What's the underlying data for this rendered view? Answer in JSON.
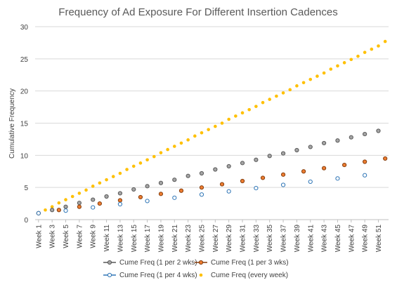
{
  "chart_data": {
    "type": "scatter",
    "title": "Frequency of Ad Exposure For Different Insertion Cadences",
    "xlabel": "",
    "ylabel": "Cumulative Frequency",
    "ylim": [
      0,
      30
    ],
    "yticks": [
      0,
      5,
      10,
      15,
      20,
      25,
      30
    ],
    "x_tick_labels": [
      "Week 1",
      "Week 3",
      "Week 5",
      "Week 7",
      "Week 9",
      "Week 11",
      "Week 13",
      "Week 15",
      "Week 17",
      "Week 19",
      "Week 21",
      "Week 23",
      "Week 25",
      "Week 27",
      "Week 29",
      "Week 31",
      "Week 33",
      "Week 35",
      "Week 37",
      "Week 39",
      "Week 41",
      "Week 43",
      "Week 45",
      "Week 47",
      "Week 49",
      "Week 51"
    ],
    "x_range": [
      1,
      52
    ],
    "grid": "horizontal",
    "legend_position": "bottom",
    "series": [
      {
        "name": "Cume Freq (1 per 2 wks)",
        "color": "#a5a5a5",
        "edge": "#595959",
        "marker": "circle",
        "x": [
          1,
          3,
          5,
          7,
          9,
          11,
          13,
          15,
          17,
          19,
          21,
          23,
          25,
          27,
          29,
          31,
          33,
          35,
          37,
          39,
          41,
          43,
          45,
          47,
          49,
          51
        ],
        "values": [
          1.0,
          1.5,
          2.0,
          2.6,
          3.1,
          3.6,
          4.1,
          4.7,
          5.2,
          5.7,
          6.2,
          6.8,
          7.2,
          7.8,
          8.3,
          8.8,
          9.3,
          9.9,
          10.3,
          10.8,
          11.3,
          11.9,
          12.3,
          12.8,
          13.3,
          13.8
        ]
      },
      {
        "name": "Cume Freq (1 per 3 wks)",
        "color": "#ed7d31",
        "edge": "#843c0c",
        "marker": "circle",
        "x": [
          1,
          4,
          7,
          10,
          13,
          16,
          19,
          22,
          25,
          28,
          31,
          34,
          37,
          40,
          43,
          46,
          49,
          52
        ],
        "values": [
          1.0,
          1.5,
          2.0,
          2.5,
          3.0,
          3.5,
          4.0,
          4.5,
          5.0,
          5.5,
          6.0,
          6.5,
          7.0,
          7.5,
          8.0,
          8.5,
          9.0,
          9.5
        ]
      },
      {
        "name": "Cume Freq (1 per 4 wks)",
        "color": "#ffffff",
        "edge": "#2e75b6",
        "marker": "circle",
        "x": [
          1,
          5,
          9,
          13,
          17,
          21,
          25,
          29,
          33,
          37,
          41,
          45,
          49
        ],
        "values": [
          1.0,
          1.4,
          1.9,
          2.4,
          2.9,
          3.4,
          3.9,
          4.4,
          4.9,
          5.4,
          5.9,
          6.4,
          6.9
        ]
      },
      {
        "name": "Cume Freq (every week)",
        "color": "#ffc000",
        "edge": "#ffc000",
        "marker": "dot",
        "x": [
          1,
          2,
          3,
          4,
          5,
          6,
          7,
          8,
          9,
          10,
          11,
          12,
          13,
          14,
          15,
          16,
          17,
          18,
          19,
          20,
          21,
          22,
          23,
          24,
          25,
          26,
          27,
          28,
          29,
          30,
          31,
          32,
          33,
          34,
          35,
          36,
          37,
          38,
          39,
          40,
          41,
          42,
          43,
          44,
          45,
          46,
          47,
          48,
          49,
          50,
          51,
          52
        ],
        "values": [
          1.0,
          1.5,
          2.0,
          2.6,
          3.1,
          3.6,
          4.1,
          4.6,
          5.2,
          5.7,
          6.2,
          6.7,
          7.2,
          7.8,
          8.3,
          8.8,
          9.3,
          9.8,
          10.4,
          10.9,
          11.4,
          11.9,
          12.4,
          13.0,
          13.5,
          14.0,
          14.5,
          15.0,
          15.6,
          16.1,
          16.6,
          17.1,
          17.6,
          18.2,
          18.7,
          19.2,
          19.7,
          20.2,
          20.8,
          21.3,
          21.8,
          22.3,
          22.8,
          23.4,
          23.9,
          24.4,
          24.9,
          25.4,
          26.0,
          26.5,
          27.0,
          27.7
        ]
      }
    ]
  }
}
